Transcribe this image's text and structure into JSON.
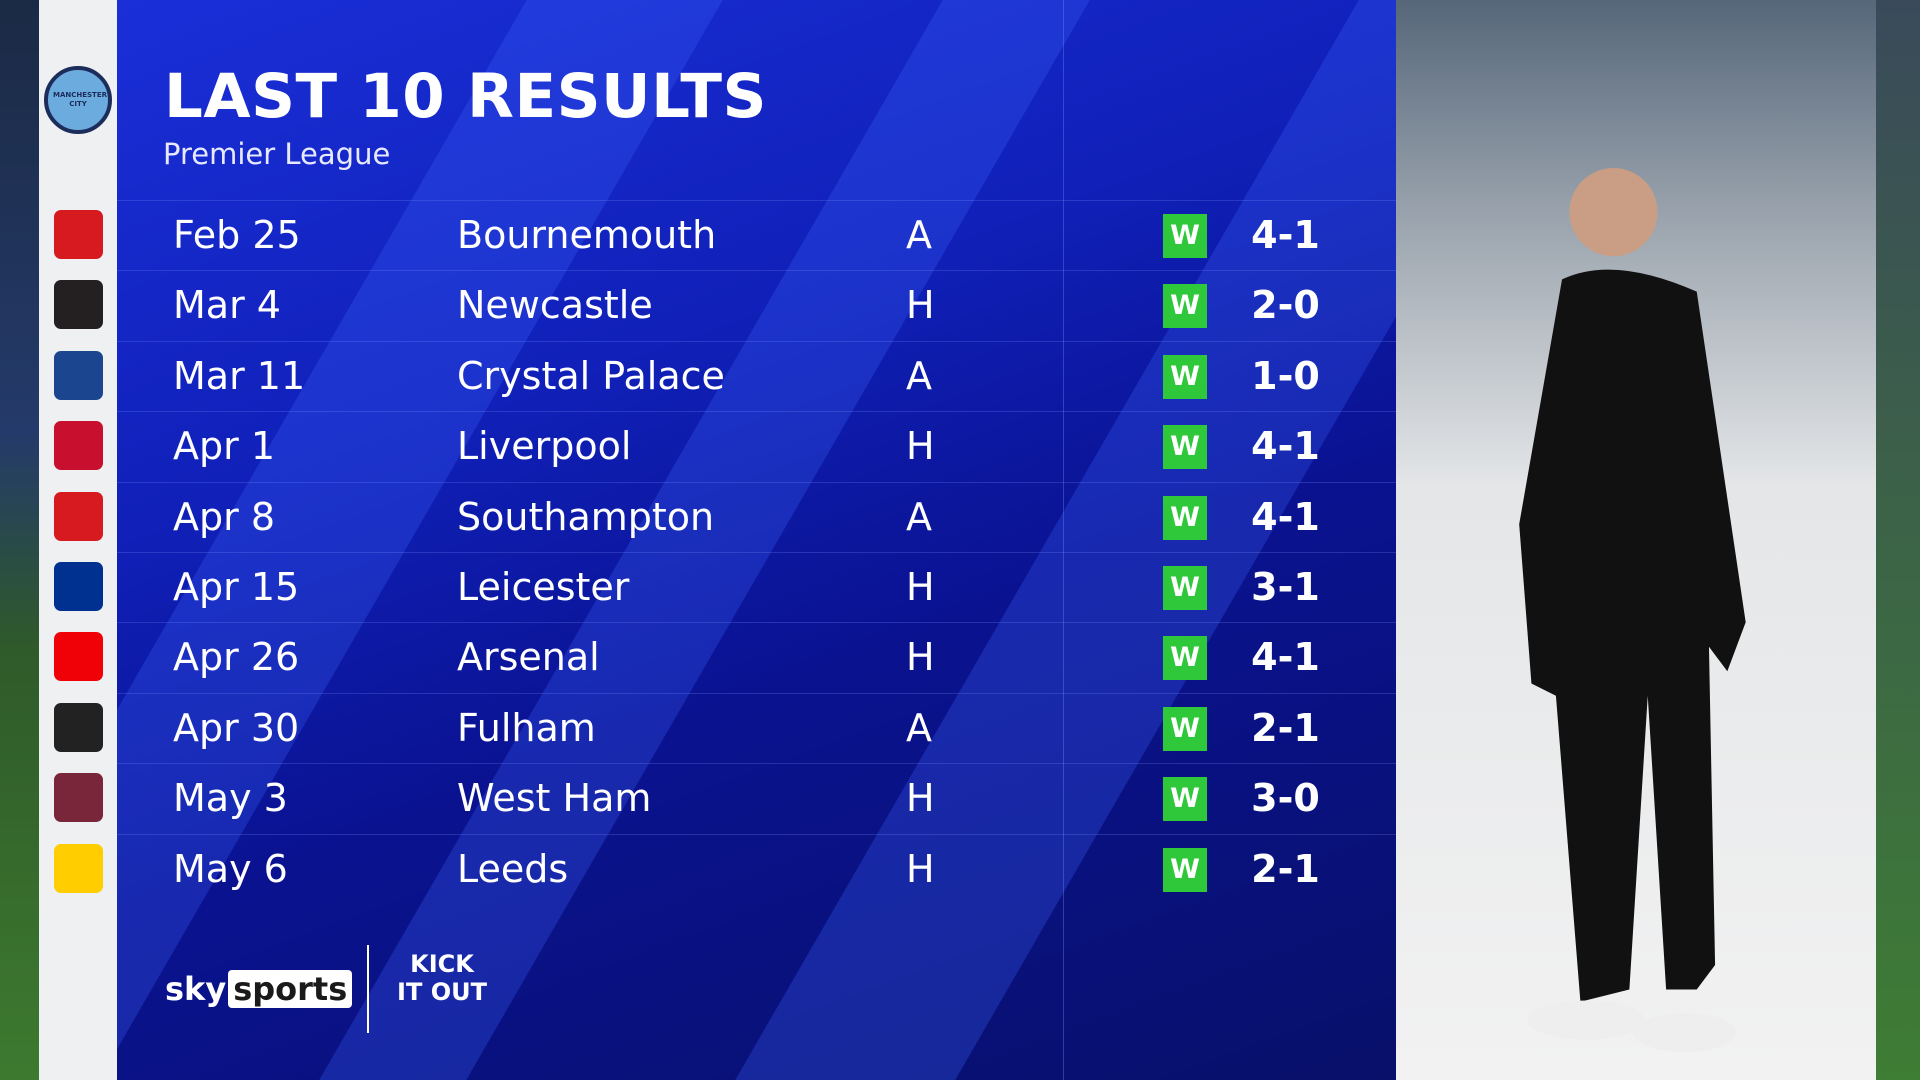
{
  "header": {
    "title": "LAST 10 RESULTS",
    "subtitle": "Premier League"
  },
  "team": {
    "name": "Manchester City",
    "crest": "man-city-crest"
  },
  "colors": {
    "panel": "#1020b8",
    "win": "#2ec83a"
  },
  "results": [
    {
      "date": "Feb 25",
      "opponent": "Bournemouth",
      "venue": "A",
      "result": "W",
      "score": "4-1",
      "crest_color": "#d71920"
    },
    {
      "date": "Mar 4",
      "opponent": "Newcastle",
      "venue": "H",
      "result": "W",
      "score": "2-0",
      "crest_color": "#241f20"
    },
    {
      "date": "Mar 11",
      "opponent": "Crystal Palace",
      "venue": "A",
      "result": "W",
      "score": "1-0",
      "crest_color": "#1b458f"
    },
    {
      "date": "Apr 1",
      "opponent": "Liverpool",
      "venue": "H",
      "result": "W",
      "score": "4-1",
      "crest_color": "#c8102e"
    },
    {
      "date": "Apr 8",
      "opponent": "Southampton",
      "venue": "A",
      "result": "W",
      "score": "4-1",
      "crest_color": "#d71920"
    },
    {
      "date": "Apr 15",
      "opponent": "Leicester",
      "venue": "H",
      "result": "W",
      "score": "3-1",
      "crest_color": "#003090"
    },
    {
      "date": "Apr 26",
      "opponent": "Arsenal",
      "venue": "H",
      "result": "W",
      "score": "4-1",
      "crest_color": "#ef0107"
    },
    {
      "date": "Apr 30",
      "opponent": "Fulham",
      "venue": "A",
      "result": "W",
      "score": "2-1",
      "crest_color": "#222222"
    },
    {
      "date": "May 3",
      "opponent": "West Ham",
      "venue": "H",
      "result": "W",
      "score": "3-0",
      "crest_color": "#7a263a"
    },
    {
      "date": "May 6",
      "opponent": "Leeds",
      "venue": "H",
      "result": "W",
      "score": "2-1",
      "crest_color": "#ffcd00"
    }
  ],
  "branding": {
    "sky": "sky",
    "sports": "sports",
    "kick_it_out": "KICK IT OUT"
  }
}
